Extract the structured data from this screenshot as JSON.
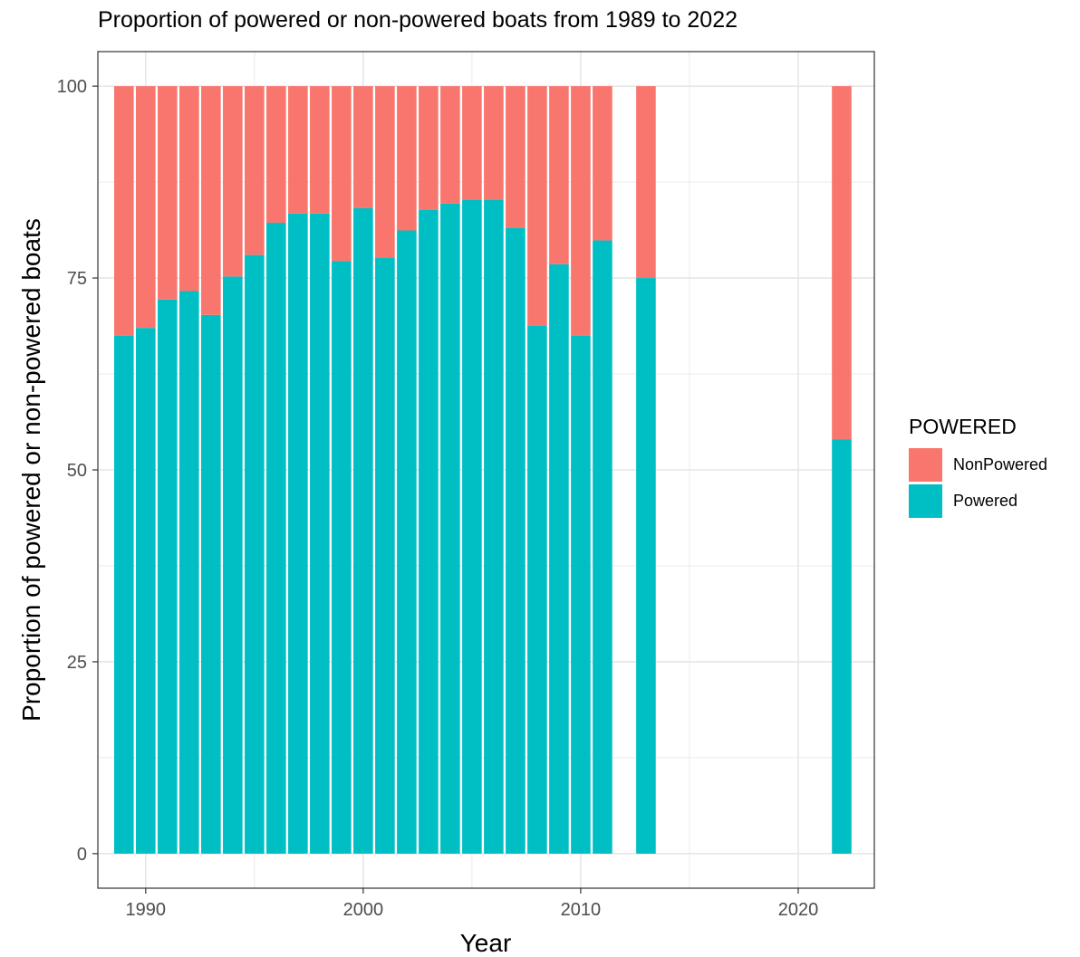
{
  "chart_data": {
    "type": "bar",
    "stacked": true,
    "title": "Proportion of powered or non-powered boats from 1989 to 2022",
    "xlabel": "Year",
    "ylabel": "Proportion of powered or non-powered boats",
    "xlim": [
      1987.8,
      2023.5
    ],
    "ylim": [
      -4.5,
      104.5
    ],
    "x_ticks": [
      1990,
      2000,
      2010,
      2020
    ],
    "y_ticks": [
      0,
      25,
      50,
      75,
      100
    ],
    "grid": true,
    "legend_position": "right",
    "legend_title": "POWERED",
    "series": [
      {
        "name": "NonPowered",
        "color": "#F8766D"
      },
      {
        "name": "Powered",
        "color": "#00BFC4"
      }
    ],
    "x": [
      1989,
      1990,
      1991,
      1992,
      1993,
      1994,
      1995,
      1996,
      1997,
      1998,
      1999,
      2000,
      2001,
      2002,
      2003,
      2004,
      2005,
      2006,
      2007,
      2008,
      2009,
      2010,
      2011,
      2013,
      2022
    ],
    "powered": [
      67.5,
      68.5,
      72.2,
      73.3,
      70.2,
      75.2,
      78.0,
      82.2,
      83.4,
      83.4,
      77.2,
      84.1,
      77.6,
      81.2,
      83.9,
      84.7,
      85.2,
      85.2,
      81.5,
      68.8,
      76.8,
      67.5,
      79.9,
      75.0,
      54.0
    ],
    "nonpowered": [
      32.5,
      31.5,
      27.8,
      26.7,
      29.8,
      24.8,
      22.0,
      17.8,
      16.6,
      16.6,
      22.8,
      15.9,
      22.4,
      18.8,
      16.1,
      15.3,
      14.8,
      14.8,
      18.5,
      31.2,
      23.2,
      32.5,
      20.1,
      25.0,
      46.0
    ]
  }
}
